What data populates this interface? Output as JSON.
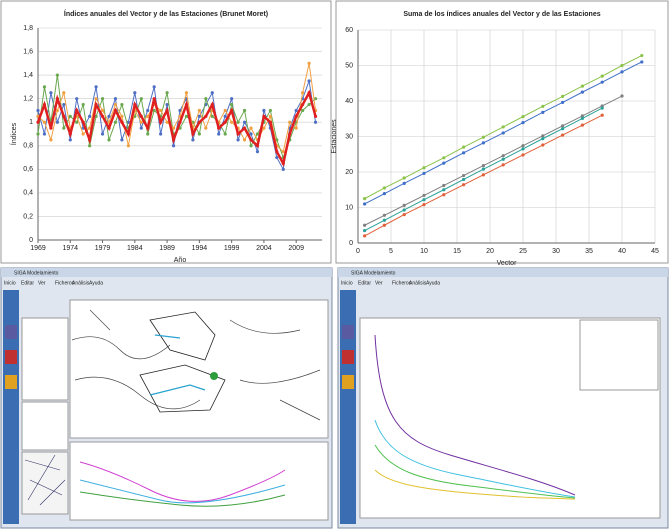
{
  "chart_data": [
    {
      "type": "line",
      "title": "Índices anuales del Vector y de las Estaciones (Brunet Moret)",
      "x_label": "Año",
      "y_label": "Índices",
      "grid": "y",
      "markers": true,
      "x": [
        1969,
        1970,
        1971,
        1972,
        1973,
        1974,
        1975,
        1976,
        1977,
        1978,
        1979,
        1980,
        1981,
        1982,
        1983,
        1984,
        1985,
        1986,
        1987,
        1988,
        1989,
        1990,
        1991,
        1992,
        1993,
        1994,
        1995,
        1996,
        1997,
        1998,
        1999,
        2000,
        2001,
        2002,
        2003,
        2004,
        2005,
        2006,
        2007,
        2008,
        2009,
        2010,
        2011,
        2012
      ],
      "xlim": [
        1969,
        2013
      ],
      "xticks": [
        1969,
        1974,
        1979,
        1984,
        1989,
        1994,
        1999,
        2004,
        2009
      ],
      "ylim": [
        0,
        1.8
      ],
      "yticks": [
        0,
        {
          "value": 0.2,
          "label": "0,2"
        },
        {
          "value": 0.4,
          "label": "0,4"
        },
        {
          "value": 0.6,
          "label": "0,6"
        },
        {
          "value": 0.8,
          "label": "0,8"
        },
        1,
        {
          "value": 1.2,
          "label": "1,2"
        },
        {
          "value": 1.4,
          "label": "1,4"
        },
        {
          "value": 1.6,
          "label": "1,6"
        },
        {
          "value": 1.8,
          "label": "1,8"
        }
      ],
      "series": [
        {
          "color": "#4f6fc4",
          "width": 1,
          "values": [
            1.1,
            0.9,
            1.25,
            1.0,
            1.15,
            0.85,
            1.2,
            0.95,
            1.05,
            1.3,
            0.9,
            1.05,
            1.2,
            0.85,
            1.0,
            1.25,
            0.95,
            1.1,
            1.3,
            0.9,
            1.15,
            0.8,
            1.1,
            1.2,
            0.85,
            1.05,
            1.15,
            1.25,
            0.9,
            1.05,
            1.2,
            0.85,
            1.0,
            0.9,
            0.75,
            1.1,
            0.95,
            0.7,
            0.6,
            0.95,
            1.1,
            1.2,
            1.35,
            1.0
          ]
        },
        {
          "color": "#6aa84f",
          "width": 1,
          "values": [
            0.9,
            1.3,
            1.0,
            1.4,
            0.95,
            1.05,
            1.0,
            1.15,
            0.8,
            1.05,
            1.2,
            0.85,
            1.0,
            1.15,
            0.95,
            1.05,
            1.2,
            0.9,
            1.1,
            1.05,
            1.25,
            0.9,
            0.95,
            1.05,
            1.0,
            0.9,
            1.2,
            1.05,
            1.0,
            0.9,
            1.15,
            1.0,
            1.1,
            0.8,
            0.9,
            1.0,
            1.1,
            0.85,
            0.7,
            0.85,
            1.0,
            1.1,
            1.15,
            1.2
          ]
        },
        {
          "color": "#f0a040",
          "width": 1,
          "values": [
            1.05,
            1.0,
            0.85,
            1.1,
            1.25,
            0.95,
            1.05,
            0.9,
            0.95,
            1.2,
            1.1,
            1.0,
            1.15,
            1.05,
            0.8,
            1.1,
            1.0,
            1.05,
            1.15,
            1.1,
            1.0,
            0.95,
            1.05,
            1.25,
            0.95,
            1.1,
            0.95,
            1.1,
            1.0,
            1.1,
            1.0,
            0.95,
            0.85,
            0.95,
            0.85,
            0.95,
            1.05,
            0.8,
            0.75,
            1.0,
            0.95,
            1.25,
            1.5,
            1.1
          ]
        },
        {
          "color": "#e02020",
          "width": 2.5,
          "values": [
            1.0,
            1.15,
            0.95,
            1.2,
            1.05,
            0.9,
            1.1,
            1.0,
            0.85,
            1.15,
            1.05,
            0.95,
            1.1,
            1.0,
            0.9,
            1.15,
            1.05,
            0.95,
            1.2,
            1.0,
            1.1,
            0.85,
            1.0,
            1.15,
            0.9,
            1.0,
            1.05,
            1.15,
            0.95,
            1.0,
            1.1,
            0.9,
            0.95,
            0.85,
            0.8,
            1.05,
            1.0,
            0.75,
            0.65,
            0.9,
            1.05,
            1.15,
            1.25,
            1.05
          ]
        }
      ]
    },
    {
      "type": "line",
      "title": "Suma de los índices anuales del Vector y de las Estaciones",
      "x_label": "Vector",
      "y_label": "Estaciones",
      "grid": "both",
      "markers": true,
      "x": [
        1,
        4,
        7,
        10,
        13,
        16,
        19,
        22,
        25,
        28,
        31,
        34,
        37,
        40,
        43
      ],
      "xlim": [
        0,
        45
      ],
      "xticks": [
        0,
        5,
        10,
        15,
        20,
        25,
        30,
        35,
        40,
        45
      ],
      "ylim": [
        0,
        60
      ],
      "yticks": [
        0,
        10,
        20,
        30,
        40,
        50,
        60
      ],
      "series": [
        {
          "color": "#8bc34a",
          "width": 1,
          "values": [
            12.5,
            15.5,
            18.3,
            21.2,
            24,
            27,
            29.8,
            32.7,
            35.6,
            38.5,
            41.3,
            44.2,
            47,
            50,
            52.8
          ]
        },
        {
          "color": "#3f6fc8",
          "width": 1,
          "values": [
            11,
            13.9,
            16.8,
            19.6,
            22.5,
            25.4,
            28.2,
            31,
            33.9,
            36.8,
            39.6,
            42.5,
            45.3,
            48.2,
            51
          ]
        },
        {
          "color": "#808080",
          "width": 1,
          "values": [
            5,
            7.8,
            10.6,
            13.4,
            16.2,
            19,
            21.8,
            24.6,
            27.4,
            30.2,
            33,
            35.8,
            38.6,
            41.4,
            null
          ]
        },
        {
          "color": "#2aa198",
          "width": 1,
          "values": [
            3.5,
            6.4,
            9.3,
            12.2,
            15,
            17.9,
            20.8,
            23.6,
            26.5,
            29.4,
            32.2,
            35.1,
            38,
            null,
            null
          ]
        },
        {
          "color": "#e0603a",
          "width": 1,
          "values": [
            2,
            5,
            8,
            10.8,
            13.6,
            16.4,
            19.2,
            22,
            24.8,
            27.6,
            30.4,
            33.2,
            36,
            null,
            null
          ]
        }
      ]
    }
  ],
  "windows": [
    {
      "title": "SIGA Modelamiento",
      "menu": [
        "Inicio",
        "Editar",
        "Ver",
        "Ficheros",
        "Análisis",
        "Ayuda"
      ]
    },
    {
      "title": "SIGA Modelamiento",
      "menu": [
        "Inicio",
        "Editar",
        "Ver",
        "Ficheros",
        "Análisis",
        "Ayuda"
      ]
    }
  ]
}
